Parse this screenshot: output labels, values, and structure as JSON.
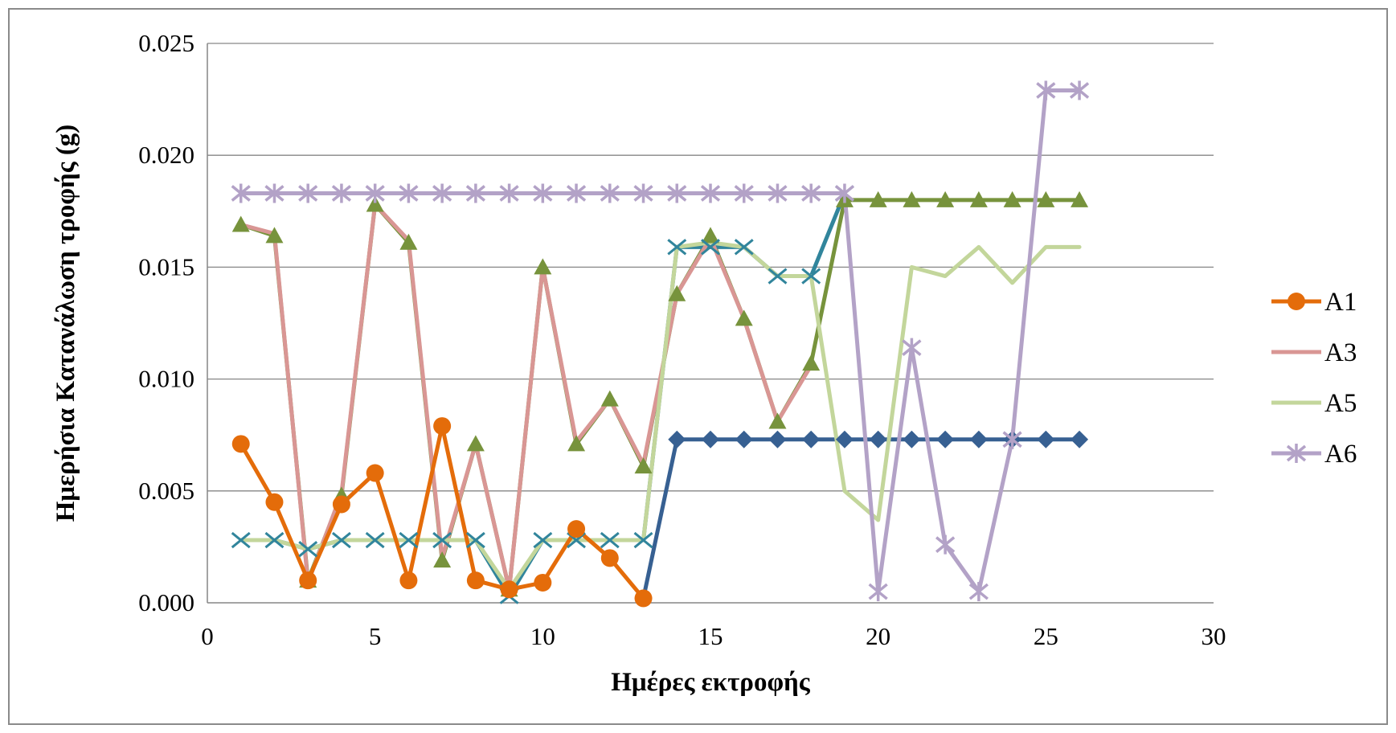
{
  "chart_data": {
    "type": "line",
    "title": "",
    "xlabel": "Ημέρες εκτροφής",
    "ylabel": "Ημερήσια Κατανάλωση τροφής (g)",
    "xlim": [
      0,
      30
    ],
    "ylim": [
      0,
      0.025
    ],
    "x_ticks": [
      0,
      5,
      10,
      15,
      20,
      25,
      30
    ],
    "x_tick_labels": [
      "0",
      "5",
      "10",
      "15",
      "20",
      "25",
      "30"
    ],
    "y_ticks": [
      0,
      0.005,
      0.01,
      0.015,
      0.02,
      0.025
    ],
    "y_tick_labels": [
      "0.000",
      "0.005",
      "0.010",
      "0.015",
      "0.020",
      "0.025"
    ],
    "grid": "horizontal",
    "legend_position": "right",
    "legend": [
      {
        "name": "A1",
        "color": "#E46C0A",
        "marker": "circle"
      },
      {
        "name": "A3",
        "color": "#D99694",
        "marker": "none"
      },
      {
        "name": "A5",
        "color": "#C3D69B",
        "marker": "none"
      },
      {
        "name": "A6",
        "color": "#B3A2C7",
        "marker": "star"
      }
    ],
    "series": [
      {
        "name": "",
        "color": "#376092",
        "marker": "diamond",
        "x": [
          13,
          14,
          15,
          16,
          17,
          18,
          19,
          20,
          21,
          22,
          23,
          24,
          25,
          26
        ],
        "y": [
          0.0002,
          0.0073,
          0.0073,
          0.0073,
          0.0073,
          0.0073,
          0.0073,
          0.0073,
          0.0073,
          0.0073,
          0.0073,
          0.0073,
          0.0073,
          0.0073
        ]
      },
      {
        "name": "",
        "color": "#77933C",
        "marker": "triangle",
        "x": [
          1,
          2,
          3,
          4,
          5,
          6,
          7,
          8,
          9,
          10,
          11,
          12,
          13,
          14,
          15,
          16,
          17,
          18,
          19,
          20,
          21,
          22,
          23,
          24,
          25,
          26
        ],
        "y": [
          0.0169,
          0.0164,
          0.001,
          0.0048,
          0.0178,
          0.0161,
          0.0019,
          0.0071,
          0.0006,
          0.015,
          0.0071,
          0.0091,
          0.0061,
          0.0138,
          0.0164,
          0.0127,
          0.0081,
          0.0107,
          0.018,
          0.018,
          0.018,
          0.018,
          0.018,
          0.018,
          0.018,
          0.018
        ]
      },
      {
        "name": "",
        "color": "#31859C",
        "marker": "x",
        "x": [
          1,
          2,
          3,
          4,
          5,
          6,
          7,
          8,
          9,
          10,
          11,
          12,
          13,
          14,
          15,
          16,
          17,
          18,
          19
        ],
        "y": [
          0.0028,
          0.0028,
          0.0024,
          0.0028,
          0.0028,
          0.0028,
          0.0028,
          0.0028,
          0.0003,
          0.0028,
          0.0028,
          0.0028,
          0.0028,
          0.0159,
          0.0159,
          0.0159,
          0.0146,
          0.0146,
          0.0183
        ]
      },
      {
        "name": "A3",
        "color": "#D99694",
        "marker": "none",
        "x": [
          1,
          2,
          3,
          4,
          5,
          6,
          7,
          8,
          9,
          10,
          11,
          12,
          13,
          14,
          15,
          16,
          17,
          18
        ],
        "y": [
          0.0169,
          0.0165,
          0.0009,
          0.0049,
          0.0178,
          0.0162,
          0.002,
          0.0071,
          0.0006,
          0.015,
          0.0072,
          0.0091,
          0.0062,
          0.0138,
          0.0163,
          0.0127,
          0.0081,
          0.0106
        ]
      },
      {
        "name": "A5",
        "color": "#C3D69B",
        "marker": "none",
        "x": [
          1,
          2,
          3,
          4,
          5,
          6,
          7,
          8,
          9,
          10,
          11,
          12,
          13,
          14,
          15,
          16,
          17,
          18,
          19,
          20,
          21,
          22,
          23,
          24,
          25,
          26
        ],
        "y": [
          0.0028,
          0.0028,
          0.0024,
          0.0028,
          0.0028,
          0.0028,
          0.0028,
          0.0028,
          0.0006,
          0.0028,
          0.0028,
          0.0028,
          0.0028,
          0.0159,
          0.0161,
          0.0159,
          0.0146,
          0.0146,
          0.005,
          0.0037,
          0.015,
          0.0146,
          0.0159,
          0.0143,
          0.0159,
          0.0159
        ]
      },
      {
        "name": "A6",
        "color": "#B3A2C7",
        "marker": "star",
        "x": [
          1,
          2,
          3,
          4,
          5,
          6,
          7,
          8,
          9,
          10,
          11,
          12,
          13,
          14,
          15,
          16,
          17,
          18,
          19,
          20,
          21,
          22,
          23,
          24,
          25,
          26
        ],
        "y": [
          0.0183,
          0.0183,
          0.0183,
          0.0183,
          0.0183,
          0.0183,
          0.0183,
          0.0183,
          0.0183,
          0.0183,
          0.0183,
          0.0183,
          0.0183,
          0.0183,
          0.0183,
          0.0183,
          0.0183,
          0.0183,
          0.0183,
          0.0005,
          0.0114,
          0.0026,
          0.0005,
          0.0073,
          0.0229,
          0.0229
        ]
      },
      {
        "name": "A1",
        "color": "#E46C0A",
        "marker": "circle",
        "x": [
          1,
          2,
          3,
          4,
          5,
          6,
          7,
          8,
          9,
          10,
          11,
          12,
          13
        ],
        "y": [
          0.0071,
          0.0045,
          0.001,
          0.0044,
          0.0058,
          0.001,
          0.0079,
          0.001,
          0.0006,
          0.0009,
          0.0033,
          0.002,
          0.0002
        ]
      }
    ]
  }
}
